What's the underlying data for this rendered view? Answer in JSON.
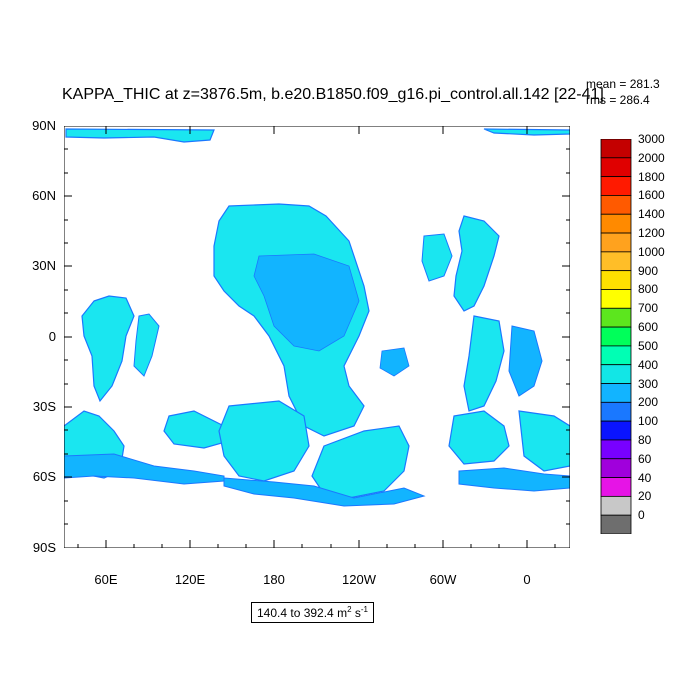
{
  "title": "KAPPA_THIC at z=3876.5m, b.e20.B1850.f09_g16.pi_control.all.142 [22-41]",
  "stats": {
    "mean": "mean = 281.3",
    "rms": "rms = 286.4"
  },
  "lat_labels": [
    "90N",
    "60N",
    "30N",
    "0",
    "30S",
    "60S",
    "90S"
  ],
  "lon_labels": [
    "60E",
    "120E",
    "180",
    "120W",
    "60W",
    "0"
  ],
  "colorbar": {
    "labels": [
      "3000",
      "2000",
      "1800",
      "1600",
      "1400",
      "1200",
      "1000",
      "900",
      "800",
      "700",
      "600",
      "500",
      "400",
      "300",
      "200",
      "100",
      "80",
      "60",
      "40",
      "20",
      "0"
    ],
    "colors": [
      "#c40000",
      "#e00000",
      "#ff1a00",
      "#ff5a00",
      "#ff8a00",
      "#ffa21e",
      "#ffbe28",
      "#ffe000",
      "#ffff00",
      "#5ce61e",
      "#00ff5a",
      "#00ffb4",
      "#12e6e6",
      "#12b4ff",
      "#1a78ff",
      "#0a14ff",
      "#7800ff",
      "#a000dc",
      "#e614e6",
      "#c8c8c8",
      "#6e6e6e"
    ]
  },
  "range_text": {
    "prefix": "140.4 to 392.4 m",
    "exp1": "2",
    "mid": " s",
    "exp2": "-1"
  },
  "map_colors": {
    "fill_main": "#1ae6f0",
    "fill_mid": "#12b4ff",
    "fill_dark": "#1a78ff"
  }
}
